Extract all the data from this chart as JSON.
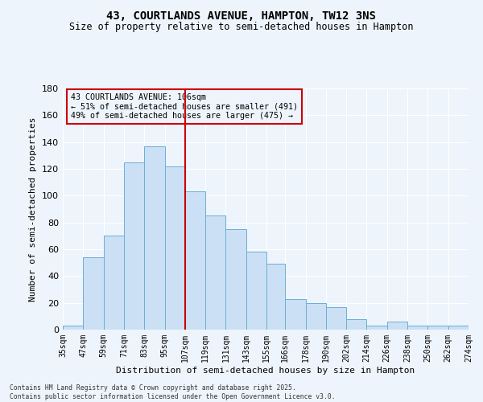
{
  "title1": "43, COURTLANDS AVENUE, HAMPTON, TW12 3NS",
  "title2": "Size of property relative to semi-detached houses in Hampton",
  "xlabel": "Distribution of semi-detached houses by size in Hampton",
  "ylabel": "Number of semi-detached properties",
  "annotation_line1": "43 COURTLANDS AVENUE: 106sqm",
  "annotation_line2": "← 51% of semi-detached houses are smaller (491)",
  "annotation_line3": "49% of semi-detached houses are larger (475) →",
  "footer1": "Contains HM Land Registry data © Crown copyright and database right 2025.",
  "footer2": "Contains public sector information licensed under the Open Government Licence v3.0.",
  "property_sqm": 106,
  "bin_edges": [
    35,
    47,
    59,
    71,
    83,
    95,
    107,
    119,
    131,
    143,
    155,
    166,
    178,
    190,
    202,
    214,
    226,
    238,
    250,
    262,
    274
  ],
  "bin_labels": [
    "35sqm",
    "47sqm",
    "59sqm",
    "71sqm",
    "83sqm",
    "95sqm",
    "107sqm",
    "119sqm",
    "131sqm",
    "143sqm",
    "155sqm",
    "166sqm",
    "178sqm",
    "190sqm",
    "202sqm",
    "214sqm",
    "226sqm",
    "238sqm",
    "250sqm",
    "262sqm",
    "274sqm"
  ],
  "bar_heights": [
    3,
    54,
    70,
    125,
    137,
    122,
    103,
    85,
    75,
    58,
    49,
    23,
    20,
    17,
    8,
    3,
    6,
    3,
    3,
    3
  ],
  "bar_color": "#cce0f5",
  "bar_edge_color": "#6aaed6",
  "vline_x": 107,
  "vline_color": "#cc0000",
  "background_color": "#eef4fb",
  "grid_color": "#ffffff",
  "ylim": [
    0,
    180
  ],
  "yticks": [
    0,
    20,
    40,
    60,
    80,
    100,
    120,
    140,
    160,
    180
  ]
}
